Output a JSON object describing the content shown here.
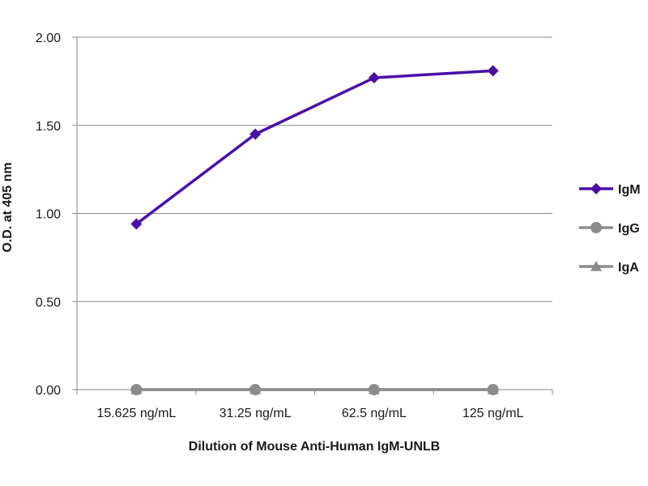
{
  "chart_data": {
    "type": "line",
    "title": "",
    "xlabel": "Dilution of Mouse Anti-Human IgM-UNLB",
    "ylabel": "O.D. at 405 nm",
    "categories": [
      "15.625 ng/mL",
      "31.25 ng/mL",
      "62.5 ng/mL",
      "125 ng/mL"
    ],
    "ylim": [
      0,
      2
    ],
    "yticks": [
      "0.00",
      "0.50",
      "1.00",
      "1.50",
      "2.00"
    ],
    "grid": true,
    "legend_position": "right",
    "series": [
      {
        "name": "IgM",
        "values": [
          0.94,
          1.45,
          1.77,
          1.81
        ],
        "color": "#4b0fa8",
        "marker": "diamond"
      },
      {
        "name": "IgG",
        "values": [
          0.0,
          0.0,
          0.0,
          0.0
        ],
        "color": "#8c8c8c",
        "marker": "circle"
      },
      {
        "name": "IgA",
        "values": [
          0.0,
          0.0,
          0.0,
          0.0
        ],
        "color": "#8c8c8c",
        "marker": "triangle"
      }
    ]
  }
}
